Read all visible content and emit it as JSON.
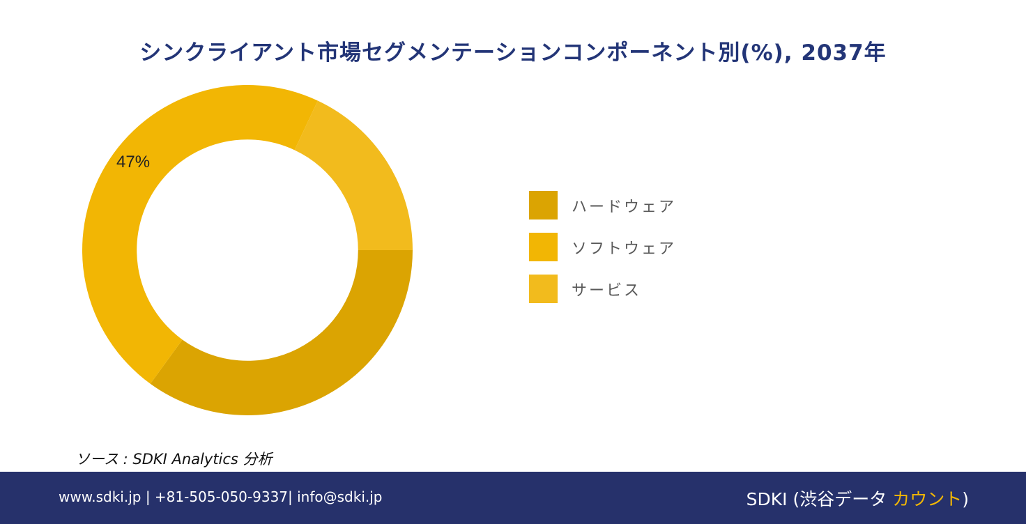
{
  "chart_data": {
    "type": "pie",
    "title": "シンクライアント市場セグメンテーションコンポーネント別(%), 2037年",
    "categories": [
      "ハードウェア",
      "ソフトウェア",
      "サービス"
    ],
    "values": [
      35,
      47,
      18
    ],
    "data_labels": [
      "",
      "47%",
      ""
    ],
    "colors": [
      "#dba402",
      "#f2b604",
      "#f2bb1d"
    ],
    "hole_ratio": 0.67,
    "legend_position": "right"
  },
  "source": "ソース : SDKI Analytics 分析",
  "footer": {
    "contact": "www.sdki.jp | +81-505-050-9337| info@sdki.jp",
    "brand_main": "SDKI (渋谷データ ",
    "brand_accent": "カウント",
    "brand_close": ")"
  }
}
